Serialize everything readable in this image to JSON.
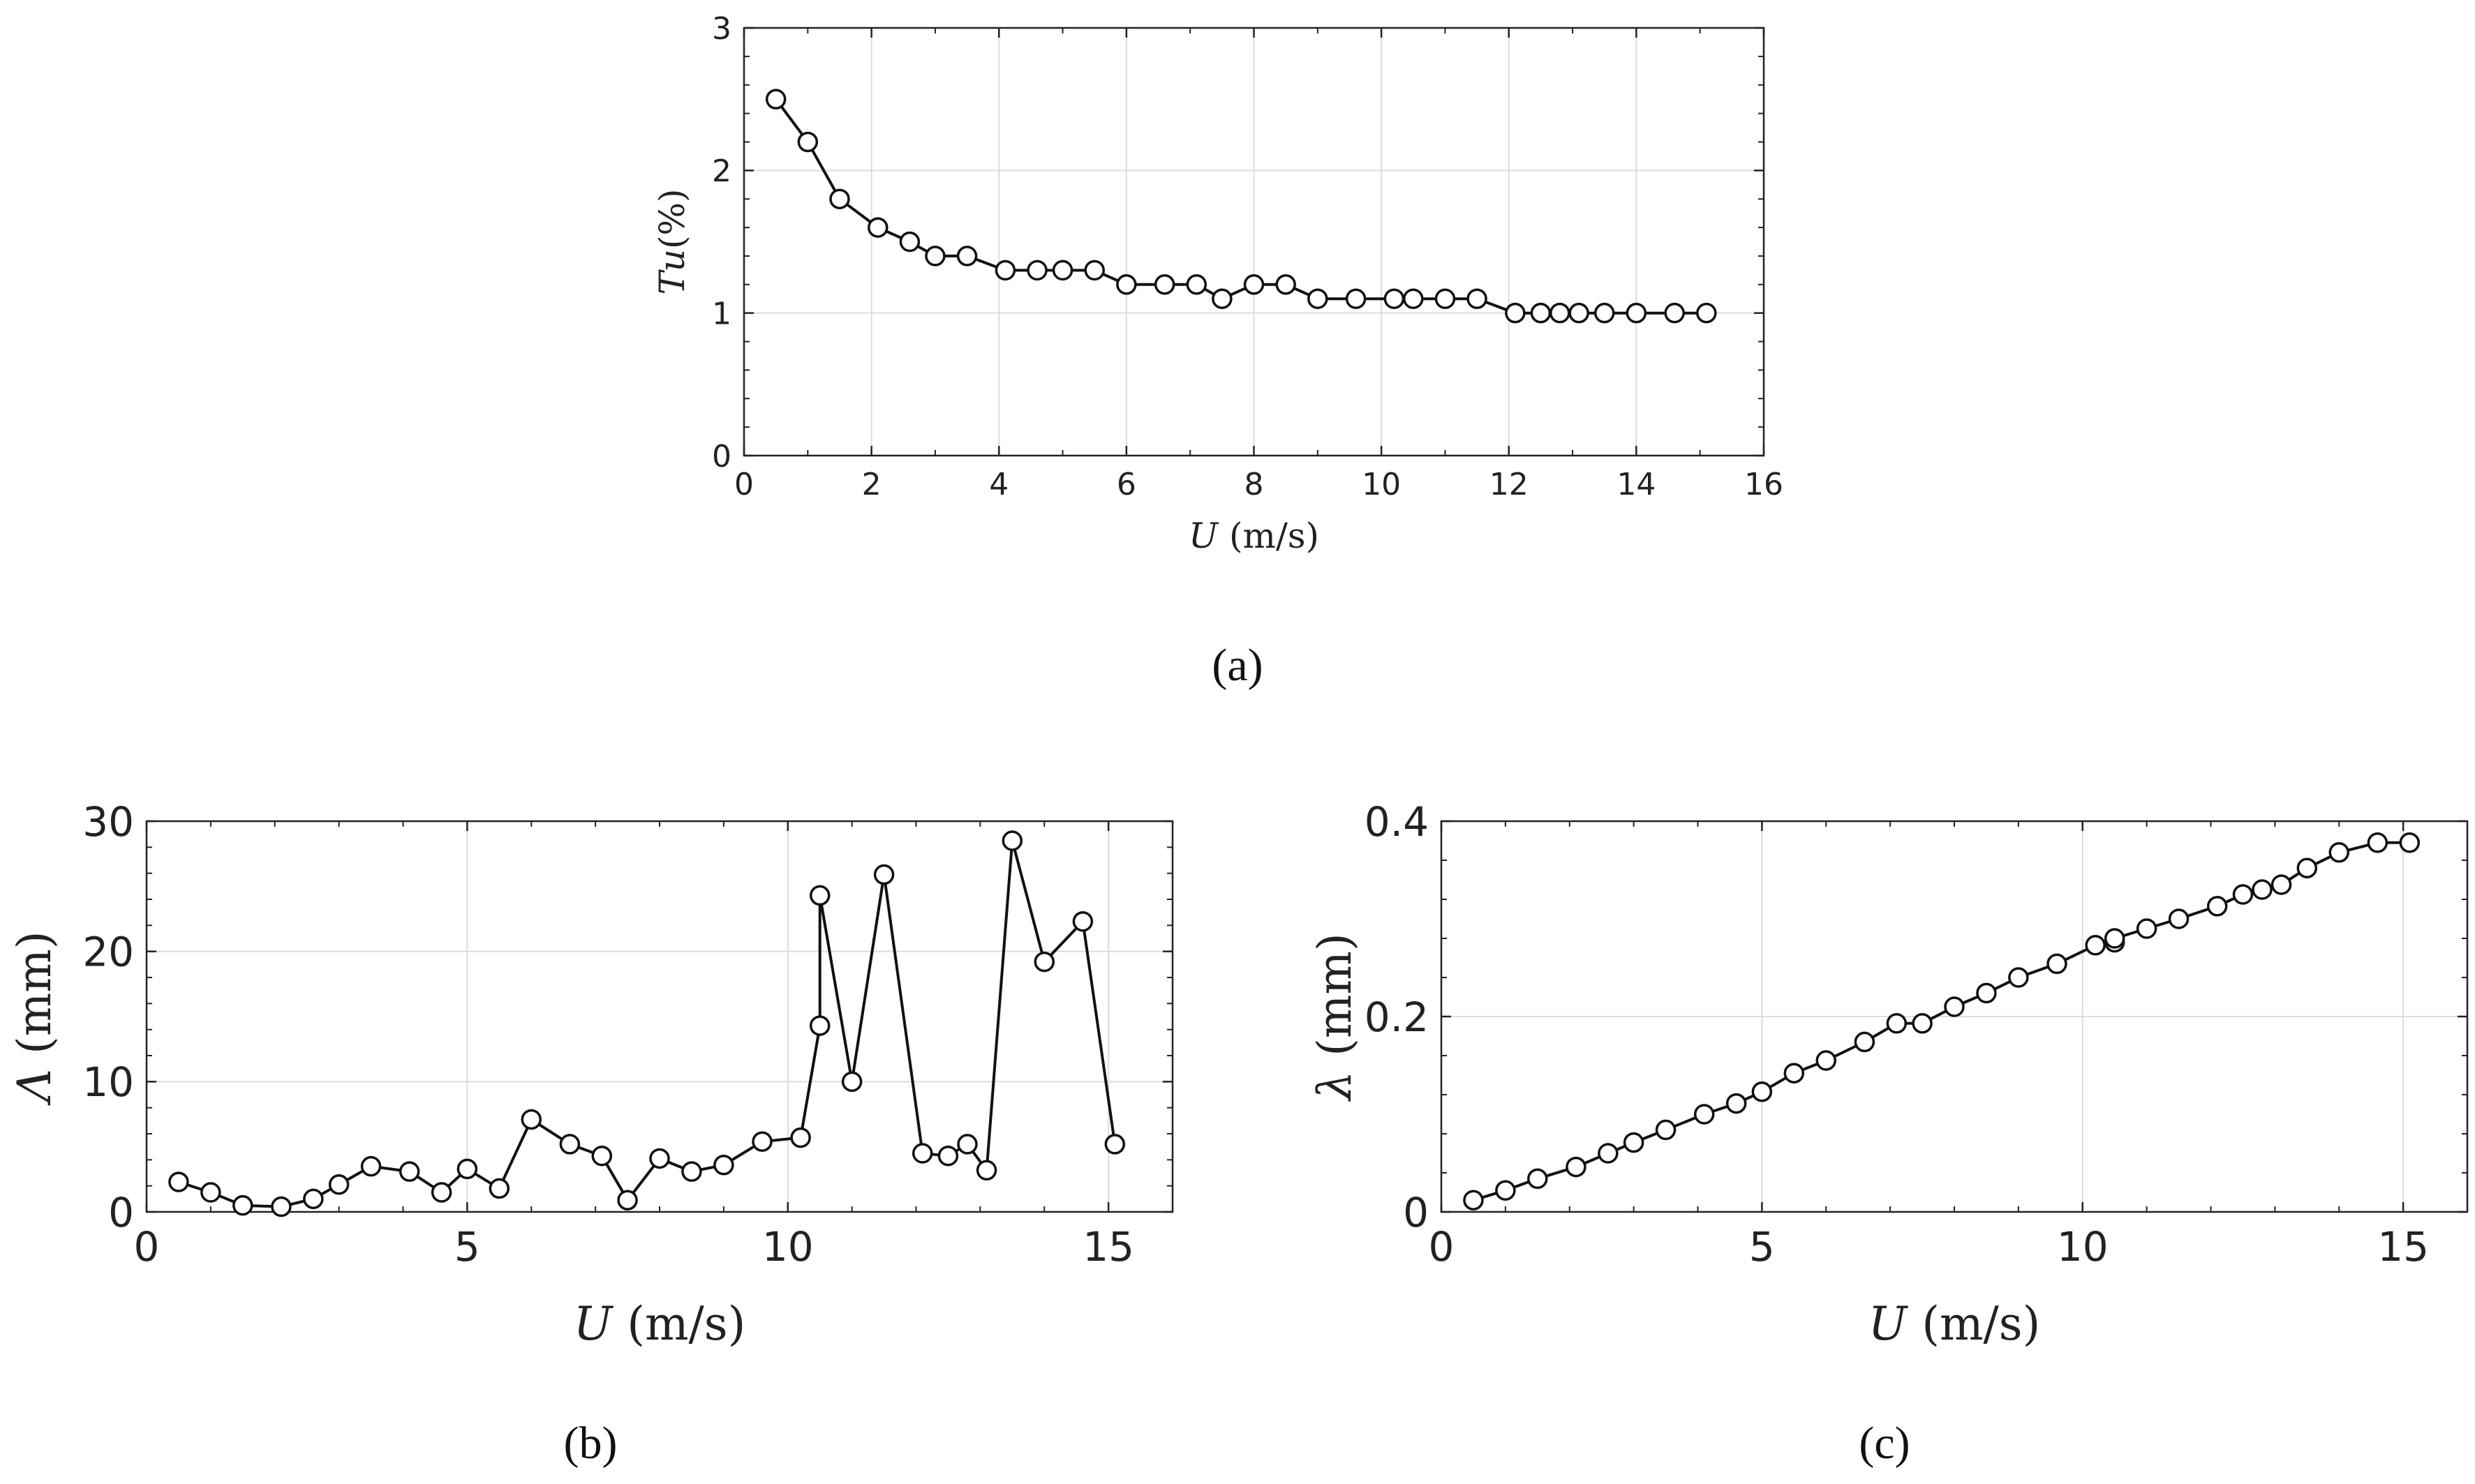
{
  "chart_data": [
    {
      "id": "a",
      "type": "line",
      "caption": "(a)",
      "xlabel_var": "U",
      "xlabel_unit": "(m/s)",
      "ylabel_var": "Tu",
      "ylabel_unit": "(%)",
      "xlim": [
        0,
        16
      ],
      "ylim": [
        0,
        3
      ],
      "xticks": [
        0,
        2,
        4,
        6,
        8,
        10,
        12,
        14,
        16
      ],
      "yticks": [
        0,
        1,
        2,
        3
      ],
      "x": [
        0.5,
        1.0,
        1.5,
        2.1,
        2.6,
        3.0,
        3.5,
        4.1,
        4.6,
        5.0,
        5.5,
        6.0,
        6.6,
        7.1,
        7.5,
        8.0,
        8.5,
        9.0,
        9.6,
        10.2,
        10.5,
        11.0,
        11.5,
        12.1,
        12.5,
        12.8,
        13.1,
        13.5,
        14.0,
        14.6,
        15.1
      ],
      "y": [
        2.5,
        2.2,
        1.8,
        1.6,
        1.5,
        1.4,
        1.4,
        1.3,
        1.3,
        1.3,
        1.3,
        1.2,
        1.2,
        1.2,
        1.1,
        1.2,
        1.2,
        1.1,
        1.1,
        1.1,
        1.1,
        1.1,
        1.1,
        1.0,
        1.0,
        1.0,
        1.0,
        1.0,
        1.0,
        1.0,
        1.0
      ]
    },
    {
      "id": "b",
      "type": "line",
      "caption": "(b)",
      "xlabel_var": "U",
      "xlabel_unit": "(m/s)",
      "ylabel_var": "Λ",
      "ylabel_unit": "(mm)",
      "xlim": [
        0,
        16
      ],
      "ylim": [
        0,
        30
      ],
      "xticks": [
        0,
        5,
        10,
        15
      ],
      "yticks": [
        0,
        10,
        20,
        30
      ],
      "x": [
        0.5,
        1.0,
        1.5,
        2.1,
        2.6,
        3.0,
        3.5,
        4.1,
        4.6,
        5.0,
        5.5,
        6.0,
        6.6,
        7.1,
        7.5,
        8.0,
        8.5,
        9.0,
        9.6,
        10.2,
        10.5,
        10.5,
        11.0,
        11.5,
        12.1,
        12.5,
        12.8,
        13.1,
        13.5,
        14.0,
        14.6,
        15.1
      ],
      "y": [
        2.3,
        1.5,
        0.5,
        0.4,
        1.0,
        2.1,
        3.5,
        3.1,
        1.5,
        3.3,
        1.8,
        7.1,
        5.2,
        4.3,
        0.9,
        4.1,
        3.1,
        3.6,
        5.4,
        5.7,
        14.3,
        24.3,
        10.0,
        25.9,
        4.5,
        4.3,
        5.2,
        3.2,
        28.5,
        19.2,
        22.3,
        5.2
      ]
    },
    {
      "id": "c",
      "type": "line",
      "caption": "(c)",
      "xlabel_var": "U",
      "xlabel_unit": "(m/s)",
      "ylabel_var": "λ",
      "ylabel_unit": "(mm)",
      "xlim": [
        0,
        16
      ],
      "ylim": [
        0,
        0.4
      ],
      "xticks": [
        0,
        5,
        10,
        15
      ],
      "yticks": [
        0,
        0.2,
        0.4
      ],
      "x": [
        0.5,
        1.0,
        1.5,
        2.1,
        2.6,
        3.0,
        3.5,
        4.1,
        4.6,
        5.0,
        5.5,
        6.0,
        6.6,
        7.1,
        7.5,
        8.0,
        8.5,
        9.0,
        9.6,
        10.2,
        10.5,
        10.5,
        11.0,
        11.5,
        12.1,
        12.5,
        12.8,
        13.1,
        13.5,
        14.0,
        14.6,
        15.1
      ],
      "y": [
        0.012,
        0.022,
        0.034,
        0.046,
        0.06,
        0.071,
        0.084,
        0.1,
        0.111,
        0.123,
        0.142,
        0.155,
        0.174,
        0.193,
        0.193,
        0.21,
        0.224,
        0.24,
        0.254,
        0.273,
        0.276,
        0.28,
        0.29,
        0.3,
        0.313,
        0.325,
        0.33,
        0.335,
        0.352,
        0.368,
        0.378,
        0.378
      ]
    }
  ]
}
